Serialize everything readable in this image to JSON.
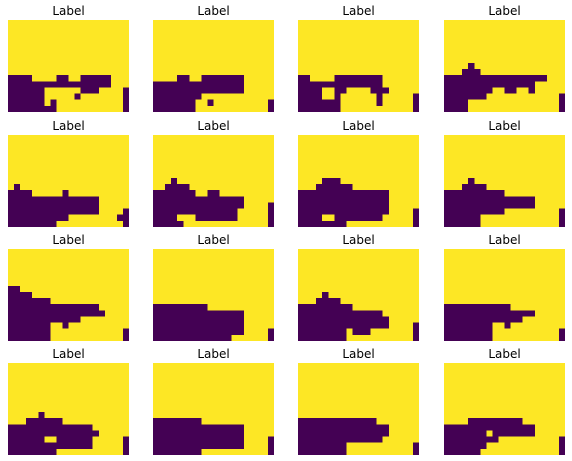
{
  "colors": {
    "background_class": "#fde725",
    "foreground_class": "#440154"
  },
  "chart_data": {
    "type": "heatmap",
    "layout": "4x4 grid of binary masks, axes hidden",
    "colormap": "viridis",
    "value_legend": {
      "0": "dark purple",
      "1": "yellow"
    },
    "panels": [
      {
        "title": "Label",
        "grid": [
          "11111111111111111111",
          "11111111111111111111",
          "11111111111111111111",
          "11111111111111111111",
          "11111111111111111111",
          "11111111111111111111",
          "11111111111111111111",
          "11111111111111111111",
          "11111111111111111111",
          "00001111001100000111",
          "00000000000000000111",
          "00000011111100011110",
          "00000011111011111110",
          "00000010111111111110",
          "00000000111111111110"
        ]
      },
      {
        "title": "Label",
        "grid": [
          "11111111111111111111",
          "11111111111111111111",
          "11111111111111111111",
          "11111111111111111111",
          "11111111111111111111",
          "11111111111111111111",
          "11111111111111111111",
          "11111111111111111111",
          "11111111111111111111",
          "11110011000000011111",
          "00000000000000011111",
          "00000000000000011111",
          "00000000111111111111",
          "00000001101111111110",
          "00000001111111111110"
        ]
      },
      {
        "title": "Label",
        "grid": [
          "11111111111111111111",
          "11111111111111111111",
          "11111111111111111111",
          "11111111111111111111",
          "11111111111111111111",
          "11111111111111111111",
          "11111111111111111111",
          "11111111111111111111",
          "11111111111111111111",
          "00111100000000111111",
          "00000000000000111111",
          "00001100111100011111",
          "00001101111110111110",
          "00000001111110111110",
          "00000001111111111110"
        ]
      },
      {
        "title": "Label",
        "grid": [
          "11111111111111111111",
          "11111111111111111111",
          "11111111111111111111",
          "11111111111111111111",
          "11111111111111111111",
          "11111111111111111111",
          "11111111111111111111",
          "11110111111111111111",
          "11100011111111111111",
          "00000000000000000111",
          "00000000000000011111",
          "00000000110011011111",
          "00000001111111111110",
          "00001111111111111110",
          "00001111111111111110"
        ]
      },
      {
        "title": "Label",
        "grid": [
          "11111111111111111111",
          "11111111111111111111",
          "11111111111111111111",
          "11111111111111111111",
          "11111111111111111111",
          "11111111111111111111",
          "11111111111111111111",
          "11111111111111111111",
          "10111111111111111111",
          "00001111101111111111",
          "00000000000000011111",
          "00000000000000011111",
          "00000000000000011110",
          "00000000001111111100",
          "00000000111111111110"
        ]
      },
      {
        "title": "Label",
        "grid": [
          "11111111111111111111",
          "11111111111111111111",
          "11111111111111111111",
          "11111111111111111111",
          "11111111111111111111",
          "11111111111111111111",
          "11111111111111111111",
          "11101111111111111111",
          "11000011111111111111",
          "00000001100111111111",
          "00000000000000011111",
          "00000000000000011110",
          "00000000000000111110",
          "00001110000000111110",
          "00000111111111111110"
        ]
      },
      {
        "title": "Label",
        "grid": [
          "11111111111111111111",
          "11111111111111111111",
          "11111111111111111111",
          "11111111111111111111",
          "11111111111111111111",
          "11111111111111111111",
          "11111111111111111111",
          "11110001111111111111",
          "11100000011111111111",
          "00000000000000011111",
          "00000000000000011111",
          "00000000000000011111",
          "00000000000000011110",
          "00001100000000111110",
          "00000000111111111110"
        ]
      },
      {
        "title": "Label",
        "grid": [
          "11111111111111111111",
          "11111111111111111111",
          "11111111111111111111",
          "11111111111111111111",
          "11111111111111111111",
          "11111111111111111111",
          "11111111111111111111",
          "11110111111111111111",
          "11100001111111111111",
          "00000000001111111111",
          "00000000000000011111",
          "00000000000000011111",
          "00000000001111111110",
          "00000011111111111110",
          "00000011111111111110"
        ]
      },
      {
        "title": "Label",
        "grid": [
          "11111111111111111111",
          "11111111111111111111",
          "11111111111111111111",
          "11111111111111111111",
          "11111111111111111111",
          "11111111111111111111",
          "00111111111111111111",
          "00001111111111111111",
          "00000001111111111111",
          "00000000000000011111",
          "00000000000000001111",
          "00000000000011111111",
          "00000001101111111111",
          "00000001111111111110",
          "00000001111111111110"
        ]
      },
      {
        "title": "Label",
        "grid": [
          "11111111111111111111",
          "11111111111111111111",
          "11111111111111111111",
          "11111111111111111111",
          "11111111111111111111",
          "11111111111111111111",
          "11111111111111111111",
          "11111111111111111111",
          "11111111111111111111",
          "00000000011111111111",
          "00000000000000011111",
          "00000000000000011111",
          "00000000000000011111",
          "00000000000000011110",
          "00000000000001111110"
        ]
      },
      {
        "title": "Label",
        "grid": [
          "11111111111111111111",
          "11111111111111111111",
          "11111111111111111111",
          "11111111111111111111",
          "11111111111111111111",
          "11111111111111111111",
          "11111111111111111111",
          "11110111111111111111",
          "11100001111111111111",
          "00000000011111111111",
          "00000000000000111111",
          "00000000000000011111",
          "00000000000000011110",
          "00000000100011111110",
          "00000000111111111110"
        ]
      },
      {
        "title": "Label",
        "grid": [
          "11111111111111111111",
          "11111111111111111111",
          "11111111111111111111",
          "11111111111111111111",
          "11111111111111111111",
          "11111111111111111111",
          "11111111111111111111",
          "11111111111111111111",
          "11111111111111111111",
          "00000000000111111111",
          "00000000000000011111",
          "00000000000001111111",
          "00000000110111111111",
          "00000000111111111110",
          "00000000111111111110"
        ]
      },
      {
        "title": "Label",
        "grid": [
          "11111111111111111111",
          "11111111111111111111",
          "11111111111111111111",
          "11111111111111111111",
          "11111111111111111111",
          "11111111111111111111",
          "11111111111111111111",
          "11111111111111111111",
          "11111011111111111111",
          "11100000011111111111",
          "00000000000000111111",
          "00000000000000011111",
          "00000011000000111110",
          "00000000000000111110",
          "00000000111111111110"
        ]
      },
      {
        "title": "Label",
        "grid": [
          "11111111111111111111",
          "11111111111111111111",
          "11111111111111111111",
          "11111111111111111111",
          "11111111111111111111",
          "11111111111111111111",
          "11111111111111111111",
          "11111111111111111111",
          "11111111111111111111",
          "00000000111111111111",
          "00000000000000011111",
          "00000000000000011111",
          "00000000000000011110",
          "00000000000000011110",
          "00000000111111111110"
        ]
      },
      {
        "title": "Label",
        "grid": [
          "11111111111111111111",
          "11111111111111111111",
          "11111111111111111111",
          "11111111111111111111",
          "11111111111111111111",
          "11111111111111111111",
          "11111111111111111111",
          "11111111111111111111",
          "11111111111111111111",
          "00000000000001111111",
          "00000000000000011111",
          "00000000000000011111",
          "00000000000000111111",
          "00000000111111111110",
          "00000000111111111110"
        ]
      },
      {
        "title": "Label",
        "grid": [
          "11111111111111111111",
          "11111111111111111111",
          "11111111111111111111",
          "11111111111111111111",
          "11111111111111111111",
          "11111111111111111111",
          "11111111111111111111",
          "11111111111111111111",
          "11111111111111111111",
          "11110000000001111111",
          "00000000000000011111",
          "00000001000000011111",
          "00000000011111111110",
          "00000001111111111110",
          "00000011111111111110"
        ]
      }
    ]
  }
}
